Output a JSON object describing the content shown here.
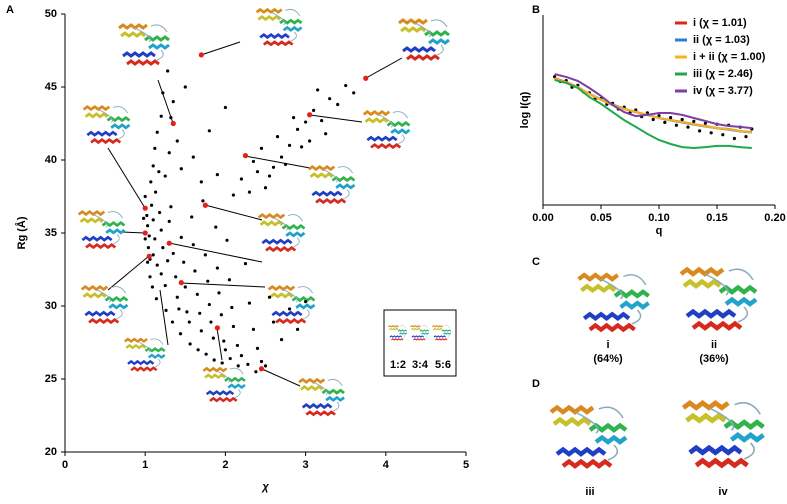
{
  "chart_data": [
    {
      "type": "scatter",
      "xlabel": "χ",
      "ylabel": "Rg (Å)",
      "xlim": [
        0,
        5
      ],
      "xticks": [
        0,
        1,
        2,
        3,
        4,
        5
      ],
      "ylim": [
        20,
        50
      ],
      "yticks": [
        20,
        25,
        30,
        35,
        40,
        45,
        50
      ],
      "series": [
        {
          "color": "#000000",
          "x": [
            1.0,
            1.02,
            1.03,
            1.05,
            1.04,
            1.06,
            1.08,
            1.1,
            1.12,
            1.1,
            1.15,
            1.13,
            1.18,
            1.2,
            1.22,
            1.2,
            1.25,
            1.28,
            1.3,
            1.32,
            1.35,
            1.38,
            1.4,
            1.42,
            1.45,
            1.48,
            1.5,
            1.52,
            1.55,
            1.58,
            1.6,
            1.62,
            1.65,
            1.68,
            1.7,
            1.72,
            1.75,
            1.78,
            1.8,
            1.82,
            1.85,
            1.88,
            1.9,
            1.92,
            1.95,
            1.98,
            2.0,
            2.02,
            2.05,
            2.08,
            2.1,
            2.15,
            2.2,
            2.25,
            2.3,
            2.35,
            2.4,
            2.45,
            2.5,
            2.55,
            2.6,
            2.7,
            2.8,
            2.9,
            3.0,
            1.07,
            1.1,
            1.12,
            1.15,
            1.17,
            1.2,
            1.22,
            1.25,
            1.28,
            1.3,
            1.32,
            1.35,
            1.4,
            1.45,
            1.5,
            1.6,
            1.7,
            1.8,
            1.9,
            2.0,
            2.1,
            2.2,
            2.3,
            2.4,
            2.5,
            2.6,
            2.7,
            2.8,
            2.9,
            3.0,
            3.1,
            3.2,
            3.3,
            3.4,
            3.5,
            3.6,
            2.35,
            2.45,
            2.55,
            2.65,
            2.75,
            2.85,
            2.95,
            3.15,
            3.25,
            3.05,
            0.98,
            1.0,
            1.03,
            1.06,
            1.09,
            1.14,
            1.26,
            1.34,
            1.44,
            1.56,
            1.66,
            1.76,
            1.86,
            1.96,
            2.06,
            2.16,
            2.28,
            2.38
          ],
          "values": [
            37.5,
            36.2,
            35.5,
            34.8,
            34.0,
            33.2,
            36.9,
            35.9,
            34.6,
            33.5,
            32.8,
            37.8,
            36.4,
            35.2,
            34.0,
            32.2,
            31.4,
            33.1,
            35.8,
            36.8,
            33.6,
            32.0,
            30.6,
            29.8,
            34.7,
            33.0,
            31.3,
            29.6,
            28.9,
            36.1,
            34.2,
            32.4,
            30.8,
            29.5,
            28.3,
            37.2,
            33.5,
            31.7,
            30.1,
            28.9,
            27.8,
            35.4,
            32.6,
            30.9,
            29.4,
            27.6,
            27.0,
            34.5,
            31.8,
            29.9,
            28.6,
            27.3,
            26.6,
            32.9,
            30.2,
            28.4,
            27.1,
            26.2,
            25.9,
            30.6,
            28.9,
            27.7,
            29.8,
            28.4,
            30.3,
            38.5,
            39.6,
            40.8,
            41.9,
            39.2,
            43.0,
            44.6,
            38.9,
            46.1,
            40.5,
            42.9,
            44.0,
            41.3,
            39.4,
            45.0,
            40.2,
            38.5,
            42.0,
            39.0,
            43.6,
            37.6,
            38.7,
            37.8,
            39.2,
            38.1,
            39.5,
            40.2,
            41.0,
            42.1,
            42.6,
            43.4,
            42.7,
            44.2,
            43.8,
            45.1,
            44.6,
            39.9,
            40.8,
            38.9,
            41.6,
            39.7,
            42.9,
            40.9,
            44.8,
            41.8,
            41.3,
            36.0,
            34.6,
            33.0,
            32.0,
            31.3,
            30.5,
            29.7,
            28.9,
            28.1,
            27.4,
            27.0,
            26.7,
            26.3,
            26.1,
            26.4,
            25.9,
            26.0,
            25.5
          ]
        },
        {
          "color": "#e3201b",
          "x": [
            1.7,
            3.75,
            1.35,
            3.05,
            2.25,
            1.0,
            1.75,
            1.0,
            1.3,
            1.05,
            1.45,
            1.9,
            2.45
          ],
          "values": [
            47.2,
            45.6,
            42.5,
            43.1,
            40.3,
            36.7,
            36.9,
            35.0,
            34.3,
            33.4,
            31.6,
            28.5,
            25.7
          ]
        }
      ]
    },
    {
      "type": "line",
      "xlabel": "q",
      "ylabel": "log I(q)",
      "xlim": [
        0,
        0.2
      ],
      "xticks": [
        {
          "value": 0,
          "label": "0.00"
        },
        0.05,
        {
          "value": 0.1,
          "label": "0.10"
        },
        0.15,
        {
          "value": 0.2,
          "label": "0.20"
        }
      ],
      "ylim": [
        0,
        10
      ],
      "legend": "upper right",
      "x": [
        0.01,
        0.02,
        0.03,
        0.04,
        0.05,
        0.06,
        0.07,
        0.08,
        0.09,
        0.1,
        0.11,
        0.12,
        0.13,
        0.14,
        0.15,
        0.16,
        0.17,
        0.18
      ],
      "series": [
        {
          "name": "i (χ = 1.01)",
          "color": "#e3201b",
          "values": [
            6.68,
            6.47,
            6.21,
            5.84,
            5.53,
            5.26,
            5.05,
            4.89,
            4.74,
            4.58,
            4.47,
            4.37,
            4.26,
            4.16,
            4.05,
            4.0,
            3.89,
            3.84
          ]
        },
        {
          "name": "ii (χ = 1.03)",
          "color": "#2a7fd4",
          "values": [
            6.63,
            6.44,
            6.2,
            5.86,
            5.56,
            5.29,
            5.07,
            4.9,
            4.74,
            4.57,
            4.45,
            4.34,
            4.23,
            4.13,
            4.03,
            3.97,
            3.87,
            3.82
          ]
        },
        {
          "name": "i + ii (χ = 1.00)",
          "color": "#f2b51c",
          "values": [
            6.66,
            6.46,
            6.21,
            5.85,
            5.54,
            5.27,
            5.06,
            4.9,
            4.74,
            4.58,
            4.46,
            4.36,
            4.25,
            4.15,
            4.04,
            3.99,
            3.88,
            3.83
          ]
        },
        {
          "name": "iii (χ = 2.46)",
          "color": "#21a84a",
          "values": [
            6.58,
            6.42,
            6.16,
            5.68,
            5.32,
            4.89,
            4.47,
            4.11,
            3.74,
            3.42,
            3.21,
            3.05,
            3.0,
            3.05,
            3.11,
            3.11,
            3.05,
            3.0
          ]
        },
        {
          "name": "iv (χ = 3.77)",
          "color": "#7b3fa5",
          "values": [
            6.89,
            6.74,
            6.53,
            6.16,
            5.74,
            5.26,
            4.89,
            4.68,
            4.74,
            4.84,
            4.84,
            4.74,
            4.58,
            4.42,
            4.26,
            4.16,
            4.11,
            4.05
          ]
        }
      ],
      "points": {
        "color": "#000000",
        "x": [
          0.01,
          0.015,
          0.02,
          0.025,
          0.03,
          0.035,
          0.04,
          0.045,
          0.05,
          0.055,
          0.06,
          0.065,
          0.07,
          0.075,
          0.08,
          0.085,
          0.09,
          0.095,
          0.1,
          0.105,
          0.11,
          0.115,
          0.12,
          0.125,
          0.13,
          0.135,
          0.14,
          0.145,
          0.15,
          0.155,
          0.16,
          0.165,
          0.17,
          0.175,
          0.18
        ],
        "values": [
          6.75,
          6.5,
          6.55,
          6.2,
          6.3,
          5.95,
          5.9,
          5.6,
          5.6,
          5.3,
          5.35,
          5.05,
          5.15,
          4.85,
          5.0,
          4.65,
          4.85,
          4.5,
          4.7,
          4.35,
          4.6,
          4.2,
          4.5,
          4.1,
          4.4,
          3.9,
          4.3,
          3.8,
          4.25,
          3.7,
          4.2,
          3.5,
          4.1,
          3.6,
          4.0
        ]
      }
    }
  ],
  "figure": {
    "panel_labels": [
      "A",
      "B",
      "C",
      "D"
    ],
    "ratio_labels": [
      "1:2",
      "3:4",
      "5:6"
    ],
    "structures": [
      {
        "label": "i",
        "share": "(64%)"
      },
      {
        "label": "ii",
        "share": "(36%)"
      },
      {
        "label": "iii"
      },
      {
        "label": "iv"
      }
    ]
  }
}
